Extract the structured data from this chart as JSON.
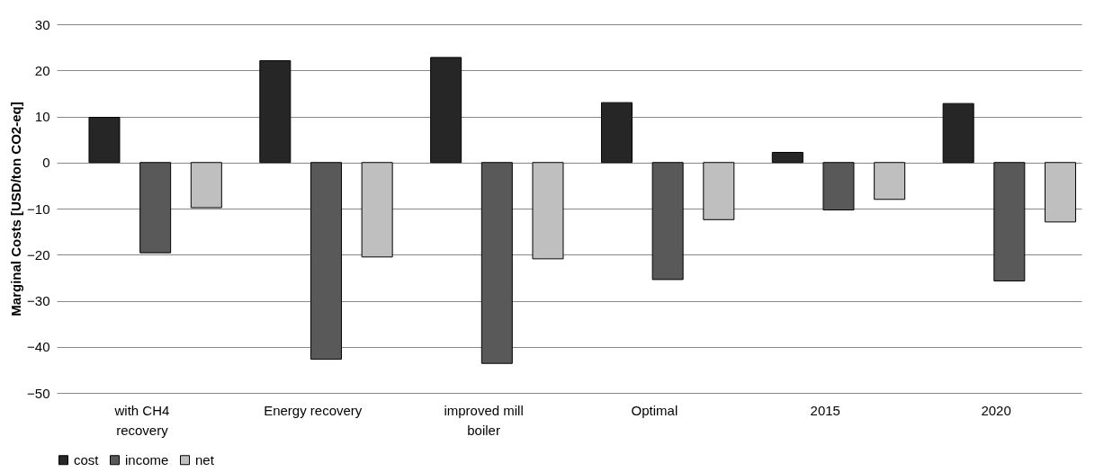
{
  "chart_data": {
    "type": "bar",
    "ylabel": "Marginal Costs [USD/ton CO2-eq]",
    "categories": [
      "with CH4 recovery",
      "Energy recovery",
      "improved mill boiler",
      "Optimal",
      "2015",
      "2020"
    ],
    "series": [
      {
        "name": "cost",
        "color": "#262626",
        "values": [
          9.8,
          22.1,
          22.8,
          13.0,
          2.2,
          12.8
        ]
      },
      {
        "name": "income",
        "color": "#595959",
        "values": [
          -19.6,
          -42.7,
          -43.6,
          -25.4,
          -10.3,
          -25.7
        ]
      },
      {
        "name": "net",
        "color": "#bfbfbf",
        "values": [
          -9.8,
          -20.5,
          -20.9,
          -12.4,
          -8.0,
          -12.9
        ]
      }
    ],
    "ylim": [
      -50,
      30
    ],
    "yticks": [
      -50,
      -40,
      -30,
      -20,
      -10,
      0,
      10,
      20,
      30
    ],
    "grid": "y",
    "legend": "bottom"
  }
}
